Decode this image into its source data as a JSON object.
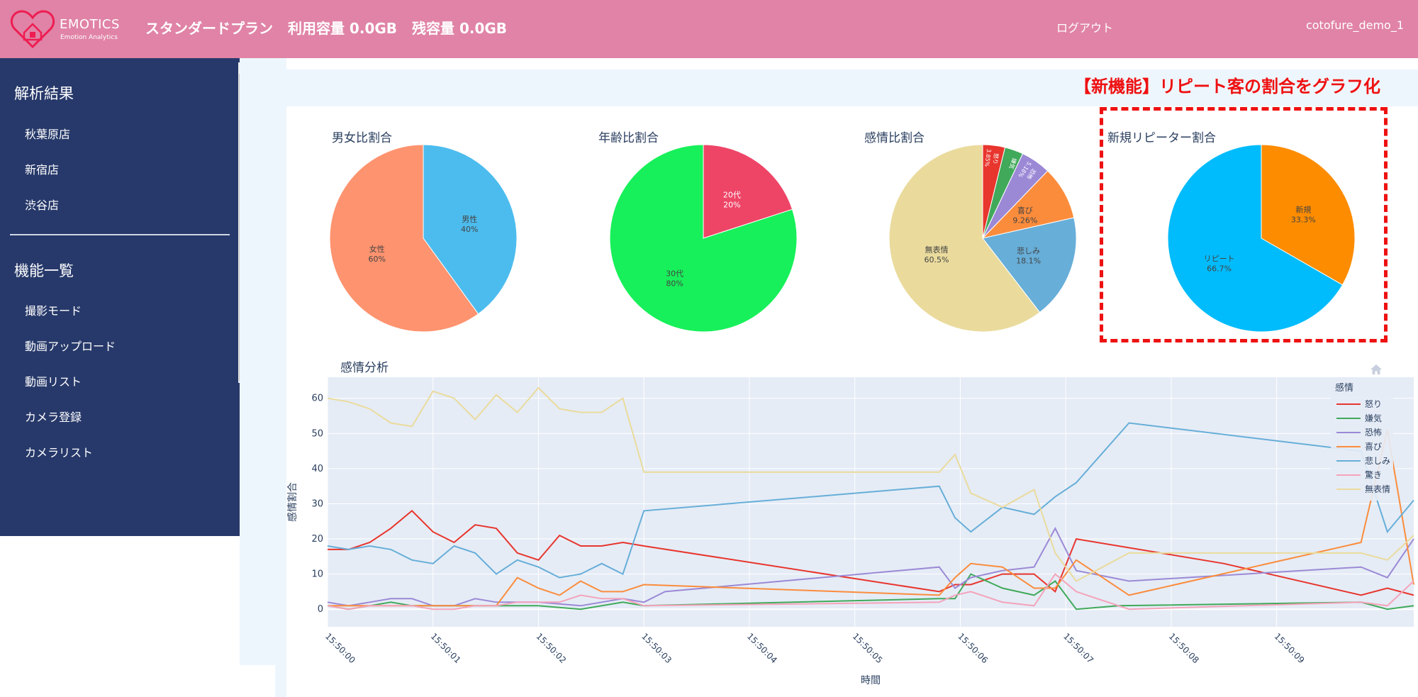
{
  "header": {
    "logo_name": "EMOTICS",
    "logo_sub": "Emotion Analytics",
    "plan": "スタンダードプラン",
    "usage": "利用容量 0.0GB",
    "remaining": "残容量 0.0GB",
    "logout": "ログアウト",
    "username": "cotofure_demo_1"
  },
  "sidebar": {
    "results_title": "解析結果",
    "stores": [
      "秋葉原店",
      "新宿店",
      "渋谷店"
    ],
    "features_title": "機能一覧",
    "features": [
      "撮影モード",
      "動画アップロード",
      "動画リスト",
      "カメラ登録",
      "カメラリスト"
    ]
  },
  "banner": "【新機能】リピート客の割合をグラフ化",
  "pies": [
    {
      "title": "男女比割合",
      "slices": [
        {
          "label": "男性",
          "pct": "40%",
          "value": 40,
          "color": "#4cbcee"
        },
        {
          "label": "女性",
          "pct": "60%",
          "value": 60,
          "color": "#fe936f"
        }
      ]
    },
    {
      "title": "年齢比割合",
      "slices": [
        {
          "label": "20代",
          "pct": "20%",
          "value": 20,
          "color": "#ee4567"
        },
        {
          "label": "30代",
          "pct": "80%",
          "value": 80,
          "color": "#17f05a"
        }
      ]
    },
    {
      "title": "感情比割合",
      "slices": [
        {
          "label": "怒り",
          "pct": "3.85%",
          "value": 3.85,
          "color": "#e8352d"
        },
        {
          "label": "嫌気",
          "pct": "",
          "value": 3.2,
          "color": "#40a95a"
        },
        {
          "label": "恐怖",
          "pct": "5.18%",
          "value": 5.18,
          "color": "#9b89d6"
        },
        {
          "label": "喜び",
          "pct": "9.26%",
          "value": 9.26,
          "color": "#fb8c3c"
        },
        {
          "label": "悲しみ",
          "pct": "18.1%",
          "value": 18.1,
          "color": "#67aed8"
        },
        {
          "label": "無表情",
          "pct": "60.5%",
          "value": 60.5,
          "color": "#eadb9d"
        }
      ]
    },
    {
      "title": "新規リピーター割合",
      "slices": [
        {
          "label": "新規",
          "pct": "33.3%",
          "value": 33.3,
          "color": "#fd8c00"
        },
        {
          "label": "リピート",
          "pct": "66.7%",
          "value": 66.7,
          "color": "#00bcfc"
        }
      ]
    }
  ],
  "chart_data": {
    "type": "line",
    "title": "感情分析",
    "xlabel": "時間",
    "ylabel": "感情割合",
    "legend_title": "感情",
    "legend_position": "top-right",
    "grid": true,
    "ylim": [
      -5,
      66
    ],
    "xlim": [
      0,
      9.85
    ],
    "yticks": [
      0,
      10,
      20,
      30,
      40,
      50,
      60
    ],
    "xticks": [
      {
        "t": 0,
        "label": "15:50:00"
      },
      {
        "t": 1,
        "label": "15:50:01"
      },
      {
        "t": 2,
        "label": "15:50:02"
      },
      {
        "t": 3,
        "label": "15:50:03"
      },
      {
        "t": 4,
        "label": "15:50:04"
      },
      {
        "t": 5,
        "label": "15:50:05"
      },
      {
        "t": 6,
        "label": "15:50:06"
      },
      {
        "t": 7,
        "label": "15:50:07"
      },
      {
        "t": 8,
        "label": "15:50:08"
      },
      {
        "t": 9,
        "label": "15:50:09"
      }
    ],
    "series": [
      {
        "name": "怒り",
        "color": "#e8352d",
        "points": [
          [
            0,
            17
          ],
          [
            0.2,
            17
          ],
          [
            0.4,
            19
          ],
          [
            0.6,
            23
          ],
          [
            0.8,
            28
          ],
          [
            1.0,
            22
          ],
          [
            1.2,
            19
          ],
          [
            1.4,
            24
          ],
          [
            1.6,
            23
          ],
          [
            1.8,
            16
          ],
          [
            2.0,
            14
          ],
          [
            2.2,
            21
          ],
          [
            2.4,
            18
          ],
          [
            2.6,
            18
          ],
          [
            2.8,
            19
          ],
          [
            3.0,
            18
          ],
          [
            5.8,
            5
          ],
          [
            5.95,
            7
          ],
          [
            6.1,
            7
          ],
          [
            6.4,
            10
          ],
          [
            6.7,
            10
          ],
          [
            6.9,
            5
          ],
          [
            7.1,
            20
          ],
          [
            8.5,
            13
          ],
          [
            9.8,
            4
          ],
          [
            10.05,
            6
          ],
          [
            10.3,
            4
          ]
        ]
      },
      {
        "name": "嫌気",
        "color": "#40a95a",
        "points": [
          [
            0,
            1
          ],
          [
            0.2,
            0
          ],
          [
            0.4,
            1
          ],
          [
            0.6,
            2
          ],
          [
            0.8,
            1
          ],
          [
            1.0,
            1
          ],
          [
            1.5,
            1
          ],
          [
            2.0,
            1
          ],
          [
            2.4,
            0
          ],
          [
            2.8,
            2
          ],
          [
            3.0,
            1
          ],
          [
            5.8,
            3
          ],
          [
            5.95,
            3
          ],
          [
            6.1,
            10
          ],
          [
            6.4,
            6
          ],
          [
            6.7,
            4
          ],
          [
            6.9,
            8
          ],
          [
            7.1,
            0
          ],
          [
            7.5,
            1
          ],
          [
            9.8,
            2
          ],
          [
            10.05,
            0
          ],
          [
            10.3,
            1
          ]
        ]
      },
      {
        "name": "恐怖",
        "color": "#9b89d6",
        "points": [
          [
            0,
            2
          ],
          [
            0.2,
            1
          ],
          [
            0.4,
            2
          ],
          [
            0.6,
            3
          ],
          [
            0.8,
            3
          ],
          [
            1.0,
            1
          ],
          [
            1.2,
            1
          ],
          [
            1.4,
            3
          ],
          [
            1.6,
            2
          ],
          [
            1.8,
            2
          ],
          [
            2.0,
            2
          ],
          [
            2.4,
            1
          ],
          [
            2.8,
            3
          ],
          [
            3.0,
            2
          ],
          [
            3.2,
            5
          ],
          [
            5.8,
            12
          ],
          [
            5.95,
            6
          ],
          [
            6.1,
            9
          ],
          [
            6.4,
            11
          ],
          [
            6.7,
            12
          ],
          [
            6.9,
            23
          ],
          [
            7.1,
            11
          ],
          [
            7.6,
            8
          ],
          [
            9.8,
            12
          ],
          [
            10.05,
            9
          ],
          [
            10.3,
            20
          ]
        ]
      },
      {
        "name": "喜び",
        "color": "#fb8c3c",
        "points": [
          [
            0,
            1
          ],
          [
            0.4,
            1
          ],
          [
            0.8,
            1
          ],
          [
            1.0,
            1
          ],
          [
            1.4,
            1
          ],
          [
            1.6,
            1
          ],
          [
            1.8,
            9
          ],
          [
            2.0,
            6
          ],
          [
            2.2,
            4
          ],
          [
            2.4,
            8
          ],
          [
            2.6,
            5
          ],
          [
            2.8,
            5
          ],
          [
            3.0,
            7
          ],
          [
            5.8,
            4
          ],
          [
            5.95,
            9
          ],
          [
            6.1,
            13
          ],
          [
            6.4,
            12
          ],
          [
            6.7,
            6
          ],
          [
            6.9,
            6
          ],
          [
            7.1,
            14
          ],
          [
            7.6,
            4
          ],
          [
            9.8,
            19
          ],
          [
            10.05,
            51
          ],
          [
            10.3,
            7
          ]
        ]
      },
      {
        "name": "悲しみ",
        "color": "#67aed8",
        "points": [
          [
            0,
            18
          ],
          [
            0.2,
            17
          ],
          [
            0.4,
            18
          ],
          [
            0.6,
            17
          ],
          [
            0.8,
            14
          ],
          [
            1.0,
            13
          ],
          [
            1.2,
            18
          ],
          [
            1.4,
            16
          ],
          [
            1.6,
            10
          ],
          [
            1.8,
            14
          ],
          [
            2.0,
            12
          ],
          [
            2.2,
            9
          ],
          [
            2.4,
            10
          ],
          [
            2.6,
            13
          ],
          [
            2.8,
            10
          ],
          [
            3.0,
            28
          ],
          [
            5.8,
            35
          ],
          [
            5.95,
            26
          ],
          [
            6.1,
            22
          ],
          [
            6.4,
            29
          ],
          [
            6.7,
            27
          ],
          [
            6.9,
            32
          ],
          [
            7.1,
            36
          ],
          [
            7.6,
            53
          ],
          [
            9.8,
            45
          ],
          [
            10.05,
            22
          ],
          [
            10.3,
            31
          ]
        ]
      },
      {
        "name": "驚き",
        "color": "#f4a3ba",
        "points": [
          [
            0,
            1
          ],
          [
            0.2,
            0
          ],
          [
            0.4,
            1
          ],
          [
            0.6,
            1
          ],
          [
            0.8,
            1
          ],
          [
            1.0,
            0
          ],
          [
            1.2,
            0
          ],
          [
            1.4,
            1
          ],
          [
            1.6,
            1
          ],
          [
            1.8,
            2
          ],
          [
            2.0,
            2
          ],
          [
            2.2,
            2
          ],
          [
            2.4,
            4
          ],
          [
            2.6,
            3
          ],
          [
            2.8,
            3
          ],
          [
            3.0,
            1
          ],
          [
            5.8,
            2
          ],
          [
            5.95,
            4
          ],
          [
            6.1,
            5
          ],
          [
            6.4,
            2
          ],
          [
            6.7,
            1
          ],
          [
            6.9,
            10
          ],
          [
            7.1,
            5
          ],
          [
            7.6,
            0
          ],
          [
            9.8,
            2
          ],
          [
            10.05,
            1
          ],
          [
            10.3,
            8
          ]
        ]
      },
      {
        "name": "無表情",
        "color": "#eadb9d",
        "points": [
          [
            0,
            60
          ],
          [
            0.2,
            59
          ],
          [
            0.4,
            57
          ],
          [
            0.6,
            53
          ],
          [
            0.8,
            52
          ],
          [
            1.0,
            62
          ],
          [
            1.2,
            60
          ],
          [
            1.4,
            54
          ],
          [
            1.6,
            61
          ],
          [
            1.8,
            56
          ],
          [
            2.0,
            63
          ],
          [
            2.2,
            57
          ],
          [
            2.4,
            56
          ],
          [
            2.6,
            56
          ],
          [
            2.8,
            60
          ],
          [
            3.0,
            39
          ],
          [
            5.8,
            39
          ],
          [
            5.95,
            44
          ],
          [
            6.1,
            33
          ],
          [
            6.4,
            29
          ],
          [
            6.7,
            34
          ],
          [
            6.9,
            16
          ],
          [
            7.1,
            8
          ],
          [
            7.6,
            16
          ],
          [
            9.8,
            16
          ],
          [
            10.05,
            14
          ],
          [
            10.3,
            21
          ]
        ]
      }
    ]
  }
}
